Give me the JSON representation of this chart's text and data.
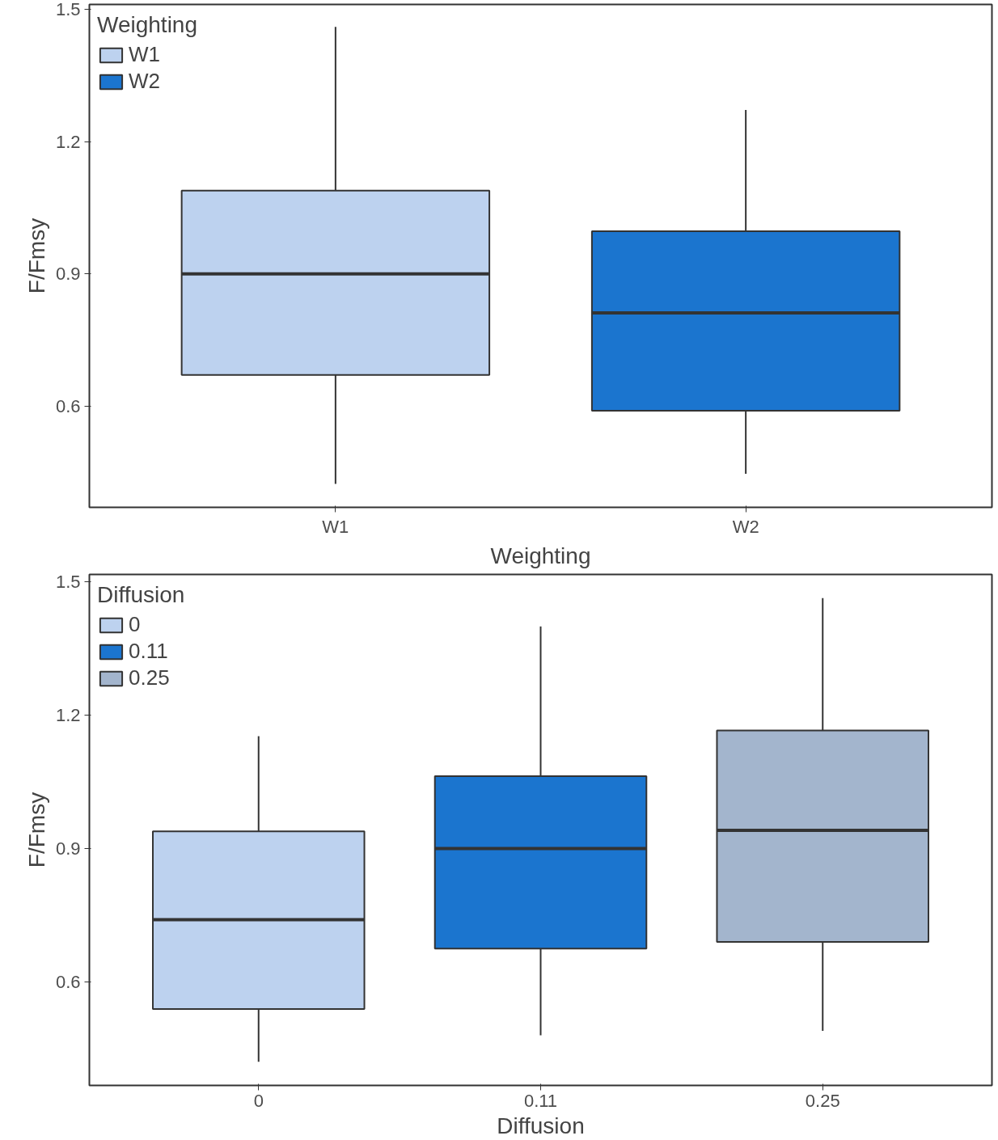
{
  "chart_data": [
    {
      "type": "box",
      "xlabel": "Weighting",
      "ylabel": "F/Fmsy",
      "legend_title": "Weighting",
      "legend": "top left",
      "grid": false,
      "categories": [
        "W1",
        "W2"
      ],
      "ylim": [
        0.371,
        1.511
      ],
      "yticks": [
        0.6,
        0.9,
        1.2,
        1.5
      ],
      "series": [
        {
          "name": "W1",
          "color": "#bdd2ef",
          "boxes": [
            {
              "low": 0.424,
              "q1": 0.671,
              "median": 0.9,
              "q3": 1.089,
              "high": 1.46
            },
            null
          ]
        },
        {
          "name": "W2",
          "color": "#1b75cf",
          "boxes": [
            null,
            {
              "low": 0.447,
              "q1": 0.59,
              "median": 0.812,
              "q3": 0.997,
              "high": 1.272
            }
          ]
        }
      ]
    },
    {
      "type": "box",
      "xlabel": "Diffusion",
      "ylabel": "F/Fmsy",
      "legend_title": "Diffusion",
      "legend": "top left",
      "grid": false,
      "categories": [
        "0",
        "0.11",
        "0.25"
      ],
      "ylim": [
        0.367,
        1.517
      ],
      "yticks": [
        0.6,
        0.9,
        1.2,
        1.5
      ],
      "series": [
        {
          "name": "0",
          "color": "#bdd2ef",
          "boxes": [
            {
              "low": 0.42,
              "q1": 0.539,
              "median": 0.74,
              "q3": 0.939,
              "high": 1.153
            },
            null,
            null
          ]
        },
        {
          "name": "0.11",
          "color": "#1b75cf",
          "boxes": [
            null,
            {
              "low": 0.48,
              "q1": 0.675,
              "median": 0.9,
              "q3": 1.063,
              "high": 1.4
            },
            null
          ]
        },
        {
          "name": "0.25",
          "color": "#a3b5cd",
          "boxes": [
            null,
            null,
            {
              "low": 0.49,
              "q1": 0.69,
              "median": 0.941,
              "q3": 1.166,
              "high": 1.464
            }
          ]
        }
      ]
    }
  ]
}
